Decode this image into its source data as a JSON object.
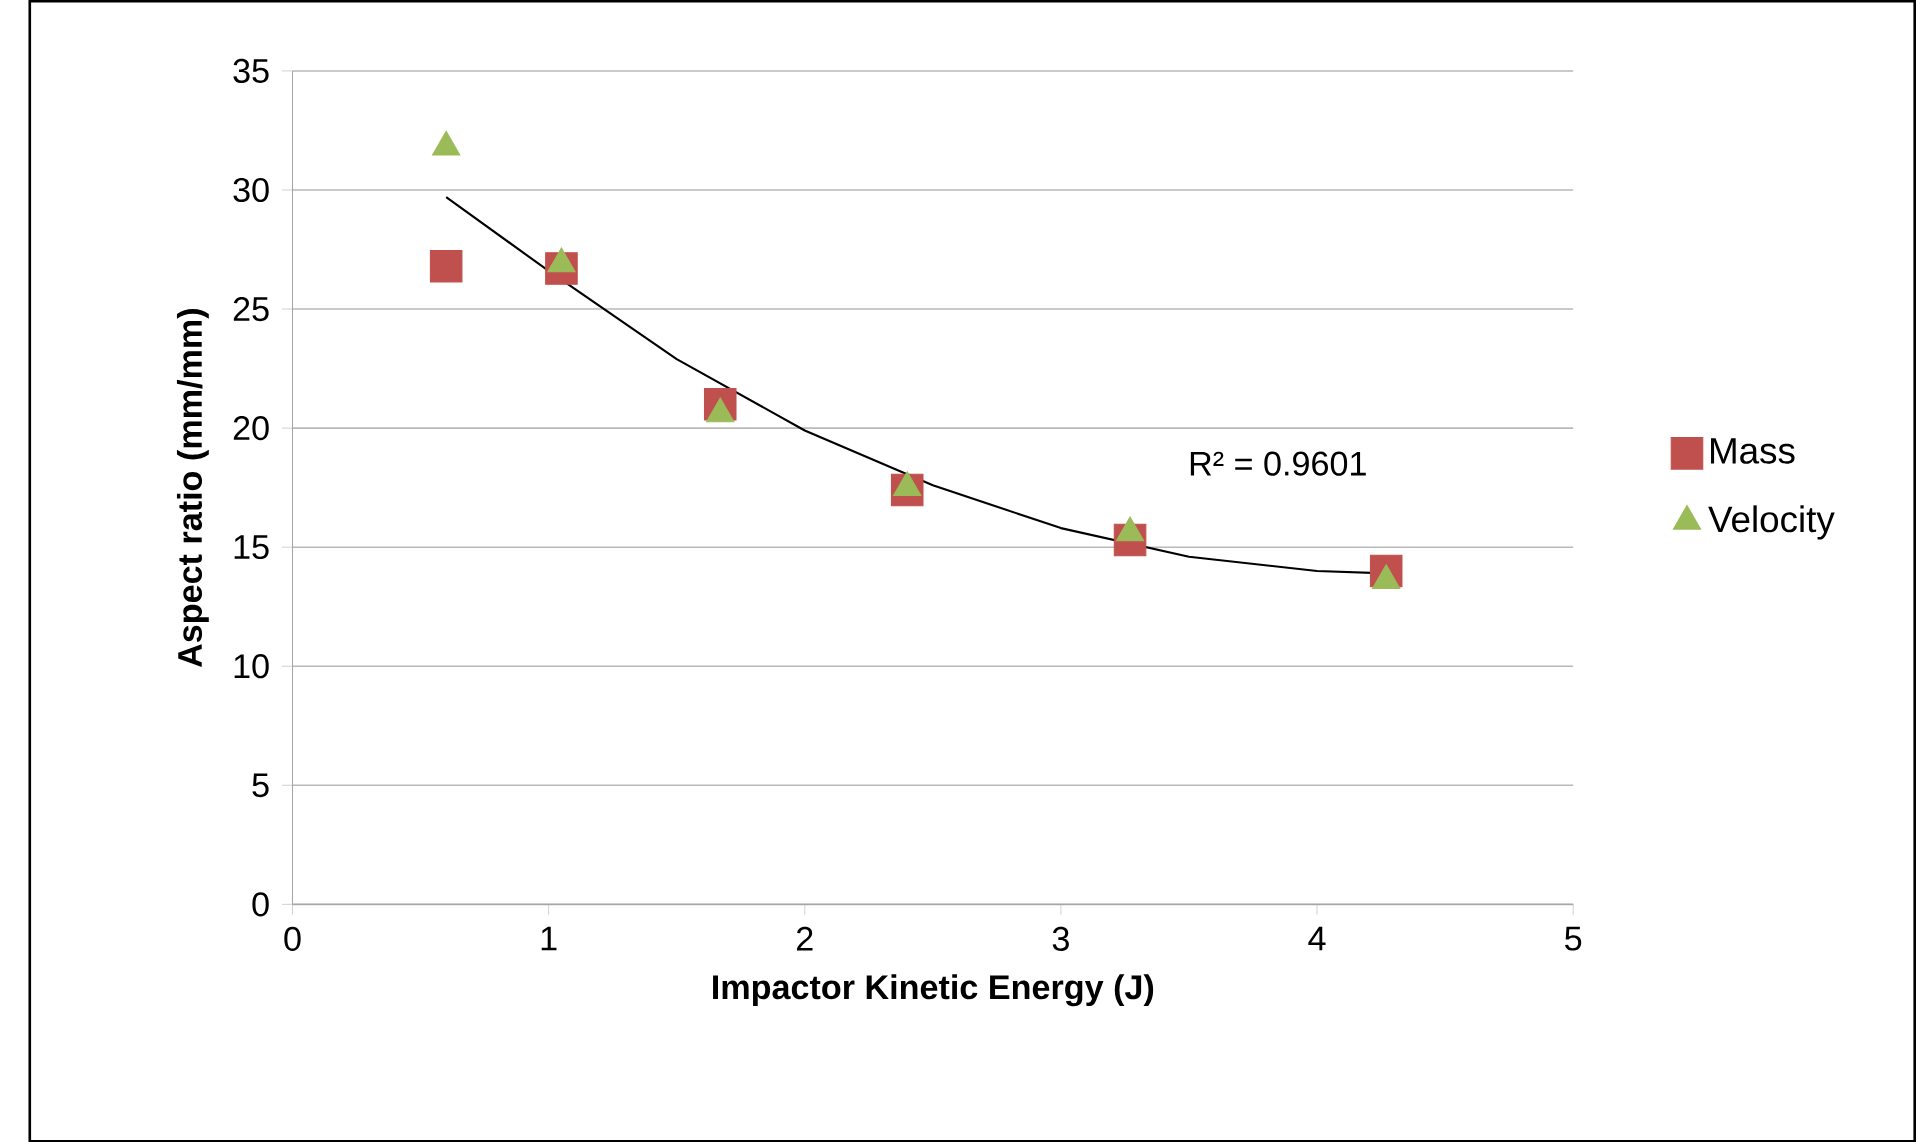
{
  "chart_data": {
    "type": "scatter",
    "xlabel": "Impactor Kinetic Energy (J)",
    "ylabel": "Aspect ratio (mm/mm)",
    "xlim": [
      0,
      5
    ],
    "ylim": [
      0,
      35
    ],
    "xticks": [
      0,
      1,
      2,
      3,
      4,
      5
    ],
    "yticks": [
      0,
      5,
      10,
      15,
      20,
      25,
      30,
      35
    ],
    "grid": "y",
    "legend": "right",
    "series": [
      {
        "name": "Mass",
        "color": "#c0504d",
        "marker": "square",
        "x": [
          0.6,
          1.05,
          1.67,
          2.4,
          3.27,
          4.27
        ],
        "values": [
          26.8,
          26.7,
          21.0,
          17.4,
          15.3,
          14.0
        ]
      },
      {
        "name": "Velocity",
        "color": "#9bbb59",
        "marker": "triangle",
        "x": [
          0.6,
          1.05,
          1.67,
          2.4,
          3.27,
          4.27
        ],
        "values": [
          31.8,
          26.9,
          20.6,
          17.5,
          15.6,
          13.6
        ]
      },
      {
        "type": "line",
        "color": "#000000",
        "x": [
          0.6,
          1.0,
          1.5,
          2.0,
          2.5,
          3.0,
          3.5,
          4.0,
          4.27
        ],
        "values": [
          29.7,
          26.6,
          22.9,
          19.9,
          17.6,
          15.8,
          14.6,
          14.0,
          13.9
        ]
      }
    ],
    "annotations": [
      "R² = 0.9601"
    ]
  }
}
